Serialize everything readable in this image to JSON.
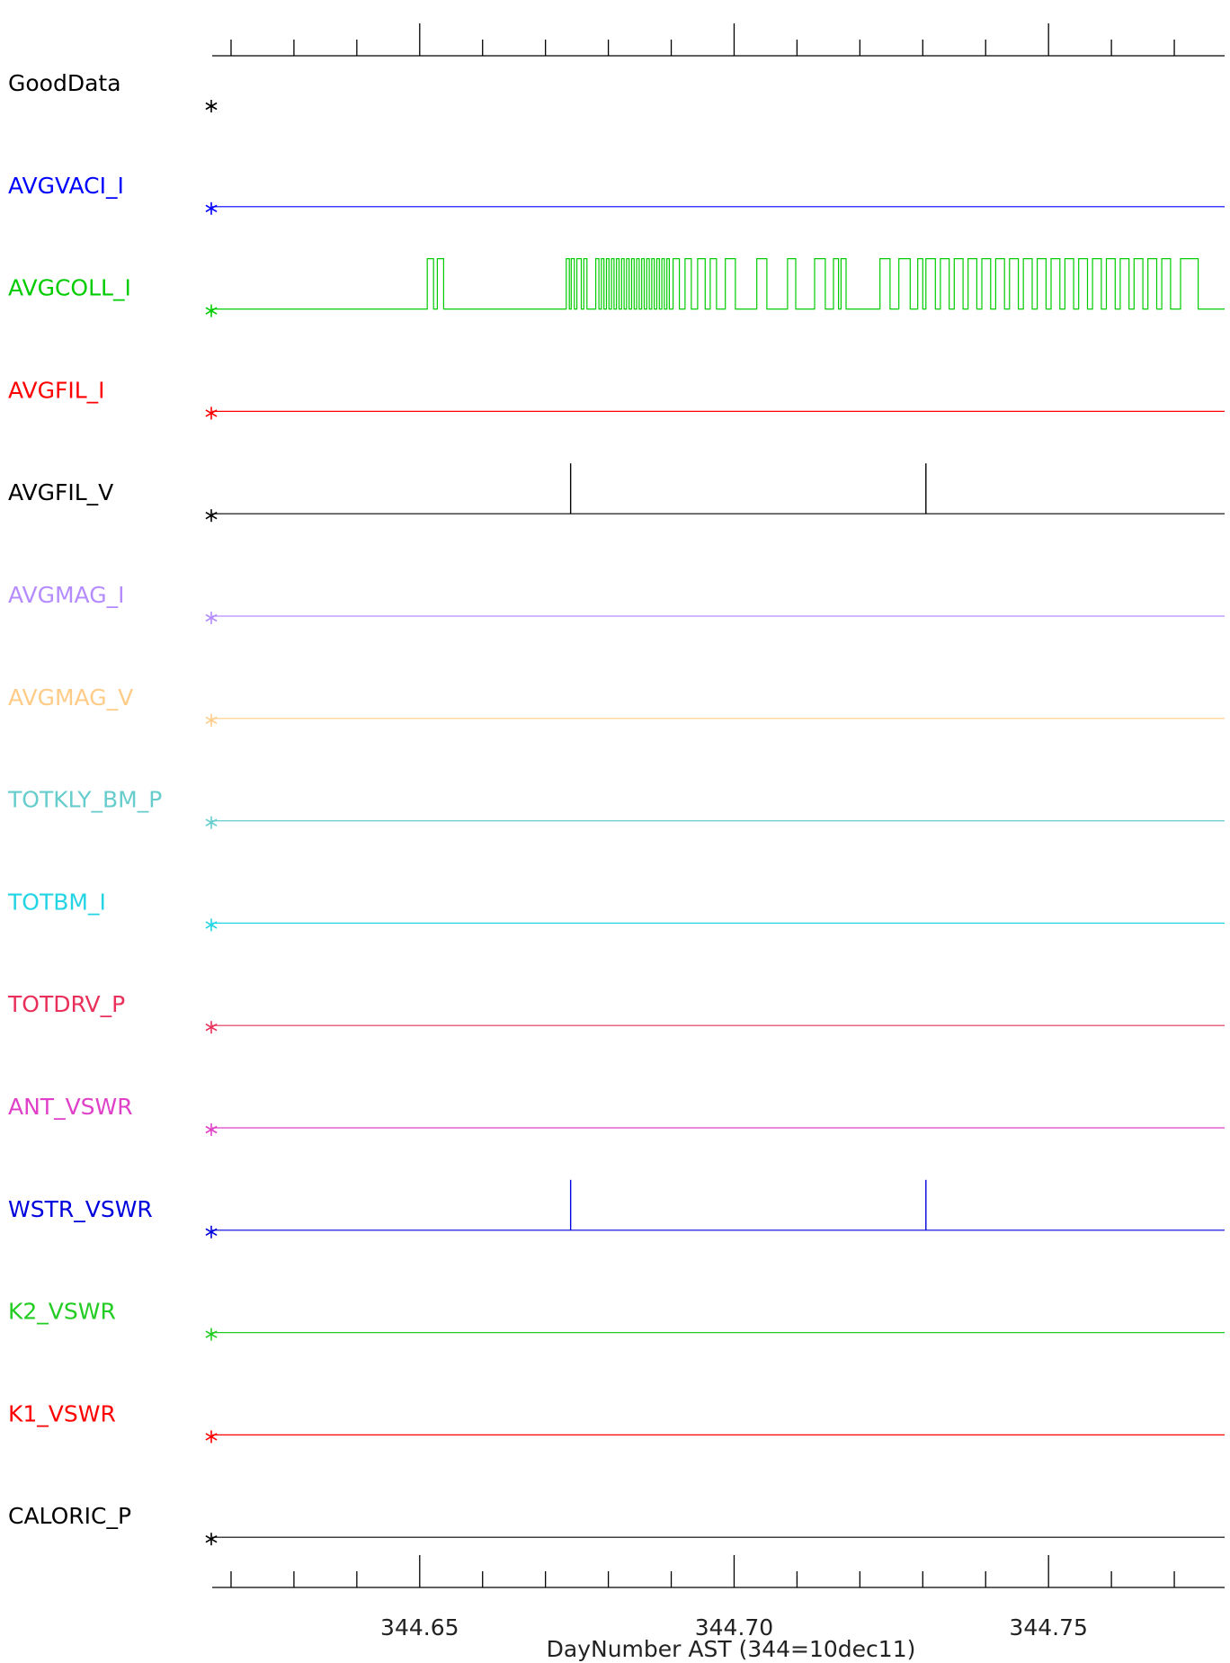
{
  "chart_data": {
    "type": "line",
    "title": "",
    "xlabel": "DayNumber AST (344=10dec11)",
    "ylabel": "",
    "xlim": [
      0.617,
      0.778
    ],
    "x_tick_labels": [
      "344.65",
      "344.70",
      "344.75"
    ],
    "x_major_ticks": [
      0.65,
      0.7,
      0.75
    ],
    "x_minor_ticks": [
      0.62,
      0.63,
      0.64,
      0.66,
      0.67,
      0.68,
      0.69,
      0.71,
      0.72,
      0.73,
      0.74,
      0.76,
      0.77
    ],
    "grid": false,
    "series": [
      {
        "name": "GoodData",
        "color": "#000000",
        "flat": false,
        "base_only": true,
        "start": 0.617
      },
      {
        "name": "AVGVACI_I",
        "color": "#0000ff",
        "flat": true,
        "start": 0.617
      },
      {
        "name": "AVGCOLL_I",
        "color": "#00cc00",
        "flat": false,
        "start": 0.617,
        "pulses": [
          [
            0.6512,
            0.6522
          ],
          [
            0.6528,
            0.6538
          ],
          [
            0.6733,
            0.6738
          ],
          [
            0.6741,
            0.6746
          ],
          [
            0.675,
            0.6757
          ],
          [
            0.6761,
            0.6766
          ],
          [
            0.678,
            0.6785
          ],
          [
            0.6789,
            0.6793
          ],
          [
            0.6797,
            0.6801
          ],
          [
            0.6805,
            0.6809
          ],
          [
            0.6813,
            0.6817
          ],
          [
            0.6821,
            0.6825
          ],
          [
            0.6829,
            0.6833
          ],
          [
            0.6837,
            0.6841
          ],
          [
            0.6845,
            0.6849
          ],
          [
            0.6853,
            0.6857
          ],
          [
            0.6861,
            0.6865
          ],
          [
            0.6869,
            0.6873
          ],
          [
            0.6877,
            0.6881
          ],
          [
            0.6885,
            0.6889
          ],
          [
            0.6893,
            0.6897
          ],
          [
            0.6903,
            0.6913
          ],
          [
            0.6922,
            0.6932
          ],
          [
            0.6942,
            0.6954
          ],
          [
            0.6962,
            0.6972
          ],
          [
            0.6986,
            0.7002
          ],
          [
            0.7036,
            0.7052
          ],
          [
            0.7085,
            0.7098
          ],
          [
            0.7128,
            0.7145
          ],
          [
            0.7158,
            0.7166
          ],
          [
            0.717,
            0.7178
          ],
          [
            0.7232,
            0.7248
          ],
          [
            0.7262,
            0.728
          ],
          [
            0.7292,
            0.73
          ],
          [
            0.7305,
            0.732
          ],
          [
            0.7328,
            0.7342
          ],
          [
            0.735,
            0.7364
          ],
          [
            0.7372,
            0.7386
          ],
          [
            0.7394,
            0.7408
          ],
          [
            0.7416,
            0.743
          ],
          [
            0.7438,
            0.7452
          ],
          [
            0.746,
            0.7474
          ],
          [
            0.7482,
            0.7496
          ],
          [
            0.7504,
            0.7518
          ],
          [
            0.7526,
            0.754
          ],
          [
            0.7548,
            0.7562
          ],
          [
            0.757,
            0.7584
          ],
          [
            0.7592,
            0.7606
          ],
          [
            0.7614,
            0.7628
          ],
          [
            0.7636,
            0.765
          ],
          [
            0.7658,
            0.7672
          ],
          [
            0.768,
            0.7694
          ],
          [
            0.771,
            0.7738
          ]
        ]
      },
      {
        "name": "AVGFIL_I",
        "color": "#ff0000",
        "flat": true,
        "start": 0.617
      },
      {
        "name": "AVGFIL_V",
        "color": "#000000",
        "flat": false,
        "start": 0.617,
        "spikes": [
          0.674,
          0.7305
        ]
      },
      {
        "name": "AVGMAG_I",
        "color": "#b58cff",
        "flat": true,
        "start": 0.617
      },
      {
        "name": "AVGMAG_V",
        "color": "#ffcc88",
        "flat": true,
        "start": 0.617
      },
      {
        "name": "TOTKLY_BM_P",
        "color": "#66cccc",
        "flat": true,
        "start": 0.617
      },
      {
        "name": "TOTBM_I",
        "color": "#22d4e4",
        "flat": true,
        "start": 0.617
      },
      {
        "name": "TOTDRV_P",
        "color": "#e8305a",
        "flat": true,
        "start": 0.617
      },
      {
        "name": "ANT_VSWR",
        "color": "#e040c8",
        "flat": true,
        "start": 0.617
      },
      {
        "name": "WSTR_VSWR",
        "color": "#0000dd",
        "flat": false,
        "start": 0.617,
        "spikes": [
          0.674,
          0.7305
        ]
      },
      {
        "name": "K2_VSWR",
        "color": "#22cc22",
        "flat": true,
        "start": 0.617
      },
      {
        "name": "K1_VSWR",
        "color": "#ff0000",
        "flat": true,
        "start": 0.617
      },
      {
        "name": "CALORIC_P",
        "color": "#000000",
        "flat": true,
        "start": 0.617
      }
    ]
  }
}
